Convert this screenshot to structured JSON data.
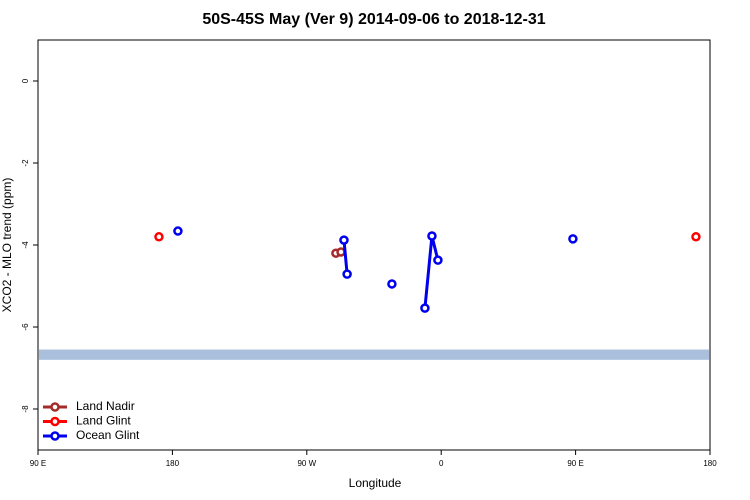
{
  "chart_data": {
    "type": "scatter",
    "title": "50S-45S May (Ver 9)   2014-09-06 to 2018-12-31",
    "x_label": "Longitude",
    "y_label": "XCO2 - MLO trend (ppm)",
    "xlim": [
      90,
      540
    ],
    "ylim": [
      -9,
      1
    ],
    "xticks": [
      {
        "value": 90,
        "label": "90 E"
      },
      {
        "value": 180,
        "label": "180"
      },
      {
        "value": 270,
        "label": "90 W"
      },
      {
        "value": 360,
        "label": "0"
      },
      {
        "value": 450,
        "label": "90 E"
      },
      {
        "value": 540,
        "label": "180"
      }
    ],
    "yticks": [
      0,
      -2,
      -4,
      -6,
      -8
    ],
    "band": {
      "color": "#a9bfdc",
      "values": [
        -6.8,
        -6.55
      ]
    },
    "legend": "bottom-left",
    "series": [
      {
        "name": "Land Nadir",
        "color": "#a52a2a",
        "x": [
          289.5,
          292.9
        ],
        "values": [
          -4.2,
          -4.17
        ]
      },
      {
        "name": "Land Glint",
        "color": "#ff0000",
        "x": [
          171.0,
          null,
          530.6
        ],
        "values": [
          -3.8,
          null,
          -3.8
        ]
      },
      {
        "name": "Ocean Glint",
        "color": "#0000ee",
        "x": [
          183.7,
          null,
          294.9,
          297.0,
          null,
          327.0,
          null,
          349.1,
          353.8,
          357.8,
          null,
          448.2
        ],
        "values": [
          -3.66,
          null,
          -3.88,
          -4.71,
          null,
          -4.95,
          null,
          -5.54,
          -3.78,
          -4.37,
          null,
          -3.85
        ]
      }
    ]
  }
}
